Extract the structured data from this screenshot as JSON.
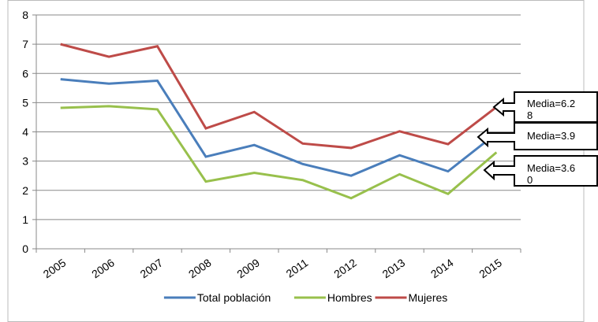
{
  "chart_data": {
    "type": "line",
    "categories": [
      "2005",
      "2006",
      "2007",
      "2008",
      "2009",
      "2011",
      "2012",
      "2013",
      "2014",
      "2015"
    ],
    "series": [
      {
        "name": "Total población",
        "color": "#4a7ebb",
        "values": [
          5.8,
          5.65,
          5.75,
          3.15,
          3.55,
          2.9,
          2.5,
          3.2,
          2.65,
          3.95
        ]
      },
      {
        "name": "Hombres",
        "color": "#98c04c",
        "values": [
          4.82,
          4.88,
          4.77,
          2.3,
          2.6,
          2.35,
          1.73,
          2.55,
          1.88,
          3.3
        ]
      },
      {
        "name": "Mujeres",
        "color": "#be4b48",
        "values": [
          7.0,
          6.57,
          6.93,
          4.12,
          4.68,
          3.6,
          3.45,
          4.02,
          3.58,
          4.85
        ]
      }
    ],
    "ylim": [
      0,
      8
    ],
    "yticks": [
      0,
      1,
      2,
      3,
      4,
      5,
      6,
      7,
      8
    ],
    "grid": true,
    "legend": "bottom",
    "annotations": [
      "Media=6.28",
      "Media=3.9",
      "Media=3.60"
    ]
  }
}
